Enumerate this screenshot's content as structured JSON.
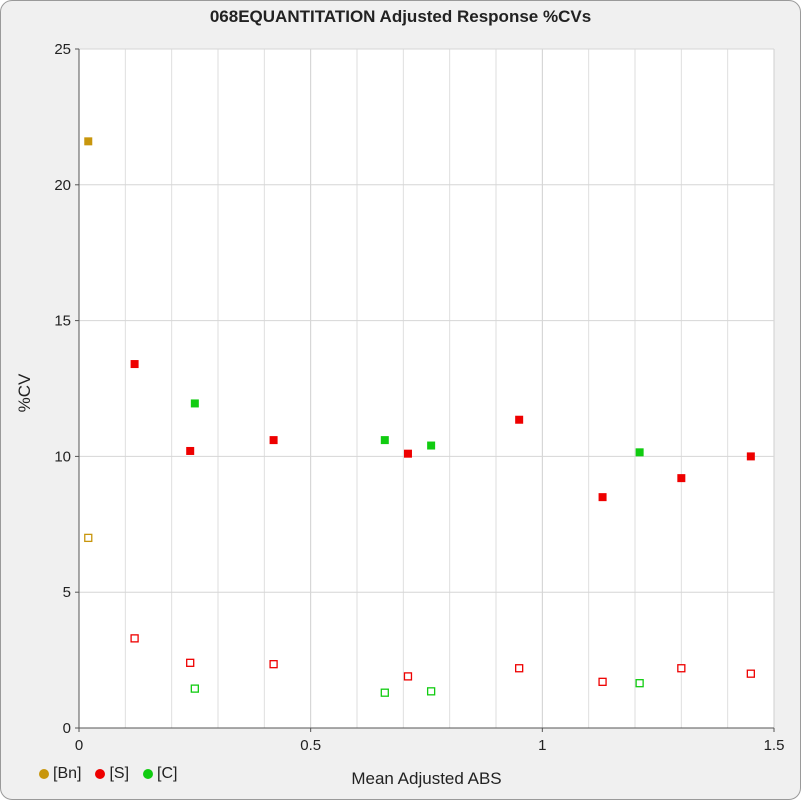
{
  "chart_data": {
    "type": "scatter",
    "title": "068EQUANTITATION Adjusted Response %CVs",
    "xlabel": "Mean Adjusted ABS",
    "ylabel": "%CV",
    "xlim": [
      0,
      1.5
    ],
    "ylim": [
      0,
      25
    ],
    "x_ticks": [
      "0",
      "0.5",
      "1",
      "1.5"
    ],
    "y_ticks": [
      "0",
      "5",
      "10",
      "15",
      "20",
      "25"
    ],
    "grid": true,
    "legend_position": "bottom-left",
    "series": [
      {
        "name": "[Bn]",
        "color": "#c8960c",
        "filled": [
          [
            0.02,
            21.6
          ]
        ],
        "open": [
          [
            0.02,
            7.0
          ]
        ]
      },
      {
        "name": "[S]",
        "color": "#ee0000",
        "filled": [
          [
            0.12,
            13.4
          ],
          [
            0.24,
            10.2
          ],
          [
            0.42,
            10.6
          ],
          [
            0.71,
            10.1
          ],
          [
            0.95,
            11.35
          ],
          [
            1.13,
            8.5
          ],
          [
            1.3,
            9.2
          ],
          [
            1.45,
            10.0
          ]
        ],
        "open": [
          [
            0.12,
            3.3
          ],
          [
            0.24,
            2.4
          ],
          [
            0.42,
            2.35
          ],
          [
            0.71,
            1.9
          ],
          [
            0.95,
            2.2
          ],
          [
            1.13,
            1.7
          ],
          [
            1.3,
            2.2
          ],
          [
            1.45,
            2.0
          ]
        ]
      },
      {
        "name": "[C]",
        "color": "#11cc11",
        "filled": [
          [
            0.25,
            11.95
          ],
          [
            0.66,
            10.6
          ],
          [
            0.76,
            10.4
          ],
          [
            1.21,
            10.15
          ]
        ],
        "open": [
          [
            0.25,
            1.45
          ],
          [
            0.66,
            1.3
          ],
          [
            0.76,
            1.35
          ],
          [
            1.21,
            1.65
          ]
        ]
      }
    ]
  }
}
